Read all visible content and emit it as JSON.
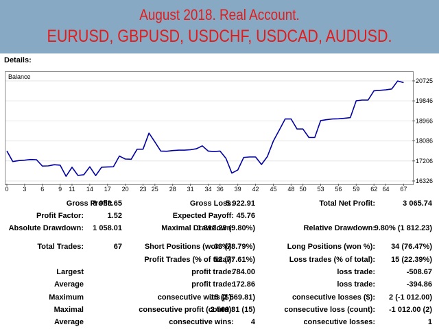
{
  "header": {
    "line1": "August 2018. Real Account.",
    "line2": "EURUSD, GBPUSD, USDCHF, USDCAD, AUDUSD."
  },
  "details_label": "Details:",
  "colors": {
    "banner_bg": "#88a9c4",
    "banner_text": "#e01c1c",
    "balance_line": "#0000a0"
  },
  "chart_data": {
    "type": "line",
    "title": "Balance",
    "x_ticks": [
      "0",
      "3",
      "6",
      "9",
      "11",
      "14",
      "17",
      "20",
      "23",
      "25",
      "28",
      "31",
      "34",
      "36",
      "39",
      "42",
      "45",
      "48",
      "50",
      "53",
      "56",
      "59",
      "62",
      "64",
      "67"
    ],
    "y_ticks": [
      "20725",
      "19846",
      "18966",
      "18086",
      "17206",
      "16326"
    ],
    "ylim": [
      16326,
      20725
    ],
    "xlim": [
      0,
      68
    ],
    "grid": true,
    "series": [
      {
        "name": "Balance",
        "values": [
          17645,
          17180,
          17220,
          17240,
          17270,
          17260,
          16980,
          16990,
          17040,
          17020,
          16530,
          16930,
          16570,
          16600,
          16950,
          16560,
          16930,
          16940,
          16950,
          17420,
          17290,
          17280,
          17720,
          17720,
          18430,
          18040,
          17640,
          17630,
          17660,
          17680,
          17680,
          17700,
          17740,
          17870,
          17640,
          17620,
          17640,
          17320,
          16670,
          16810,
          17360,
          17380,
          17380,
          17050,
          17400,
          18080,
          18560,
          19050,
          19050,
          18610,
          18610,
          18240,
          18240,
          18980,
          19020,
          19050,
          19060,
          19080,
          19110,
          19850,
          19880,
          19880,
          20290,
          20310,
          20330,
          20370,
          20720,
          20650
        ]
      }
    ]
  },
  "stats": {
    "gross_profit_label": "Gross Profit:",
    "gross_profit": "8 988.65",
    "gross_loss_label": "Gross Loss:",
    "gross_loss": "5 922.91",
    "total_net_profit_label": "Total Net Profit:",
    "total_net_profit": "3 065.74",
    "profit_factor_label": "Profit Factor:",
    "profit_factor": "1.52",
    "expected_payoff_label": "Expected Payoff:",
    "expected_payoff": "45.76",
    "abs_drawdown_label": "Absolute Drawdown:",
    "abs_drawdown": "1 058.01",
    "max_drawdown_label": "Maximal Drawdown:",
    "max_drawdown": "1 812.23 (9.80%)",
    "rel_drawdown_label": "Relative Drawdown:",
    "rel_drawdown": "9.80% (1 812.23)",
    "total_trades_label": "Total Trades:",
    "total_trades": "67",
    "short_label": "Short Positions (won %):",
    "short": "33 (78.79%)",
    "long_label": "Long Positions (won %):",
    "long": "34 (76.47%)",
    "profit_trades_label": "Profit Trades (% of total):",
    "profit_trades": "52 (77.61%)",
    "loss_trades_label": "Loss trades (% of total):",
    "loss_trades": "15 (22.39%)",
    "largest_label": "Largest",
    "largest_profit_label": "profit trade:",
    "largest_profit": "784.00",
    "largest_loss_label": "loss trade:",
    "largest_loss": "-508.67",
    "average_label": "Average",
    "average_profit_label": "profit trade:",
    "average_profit": "172.86",
    "average_loss_label": "loss trade:",
    "average_loss": "-394.86",
    "maximum_label": "Maximum",
    "max_cons_wins_label": "consecutive wins ($):",
    "max_cons_wins": "15 (2 569.81)",
    "max_cons_losses_label": "consecutive losses ($):",
    "max_cons_losses": "2 (-1 012.00)",
    "maximal_label": "Maximal",
    "maximal_profit_label": "consecutive profit (count):",
    "maximal_profit": "2 569.81 (15)",
    "maximal_loss_label": "consecutive loss (count):",
    "maximal_loss": "-1 012.00 (2)",
    "average2_label": "Average",
    "avg_cons_wins_label": "consecutive wins:",
    "avg_cons_wins": "4",
    "avg_cons_losses_label": "consecutive losses:",
    "avg_cons_losses": "1"
  }
}
